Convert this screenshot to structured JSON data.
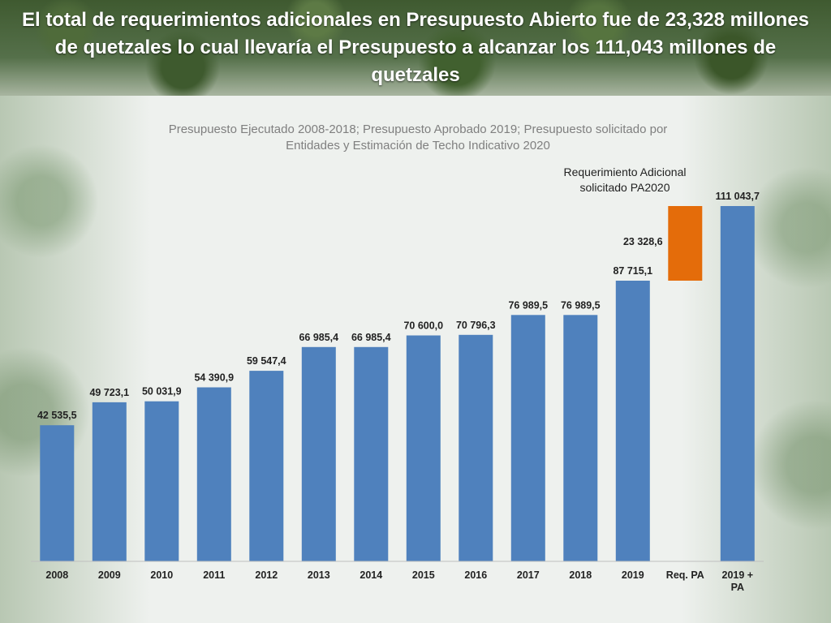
{
  "slide": {
    "title": "El total de requerimientos adicionales en Presupuesto Abierto fue de 23,328 millones de quetzales lo cual llevaría el Presupuesto a alcanzar los 111,043 millones de quetzales",
    "subtitle": "Presupuesto Ejecutado 2008-2018; Presupuesto Aprobado 2019; Presupuesto solicitado por Entidades y Estimación de Techo Indicativo 2020",
    "annotation": "Requerimiento Adicional solicitado PA2020"
  },
  "chart_data": {
    "type": "bar",
    "categories": [
      "2008",
      "2009",
      "2010",
      "2011",
      "2012",
      "2013",
      "2014",
      "2015",
      "2016",
      "2017",
      "2018",
      "2019",
      "Req. PA",
      "2019 + PA"
    ],
    "values": [
      42535.5,
      49723.1,
      50031.9,
      54390.9,
      59547.4,
      66985.4,
      66985.4,
      70600.0,
      70796.3,
      76989.5,
      76989.5,
      87715.1,
      23328.6,
      111043.7
    ],
    "value_labels": [
      "42 535,5",
      "49 723,1",
      "50 031,9",
      "54 390,9",
      "59 547,4",
      "66 985,4",
      "66 985,4",
      "70 600,0",
      "70 796,3",
      "76 989,5",
      "76 989,5",
      "87 715,1",
      "23 328,6",
      "111 043,7"
    ],
    "floating_bar": {
      "category": "Req. PA",
      "base": 87715.1,
      "value": 23328.6
    },
    "colors": {
      "main": "#4f81bd",
      "additional": "#e46c0a"
    },
    "ylim": [
      0,
      111043.7
    ],
    "grid": false,
    "legend": "none"
  }
}
